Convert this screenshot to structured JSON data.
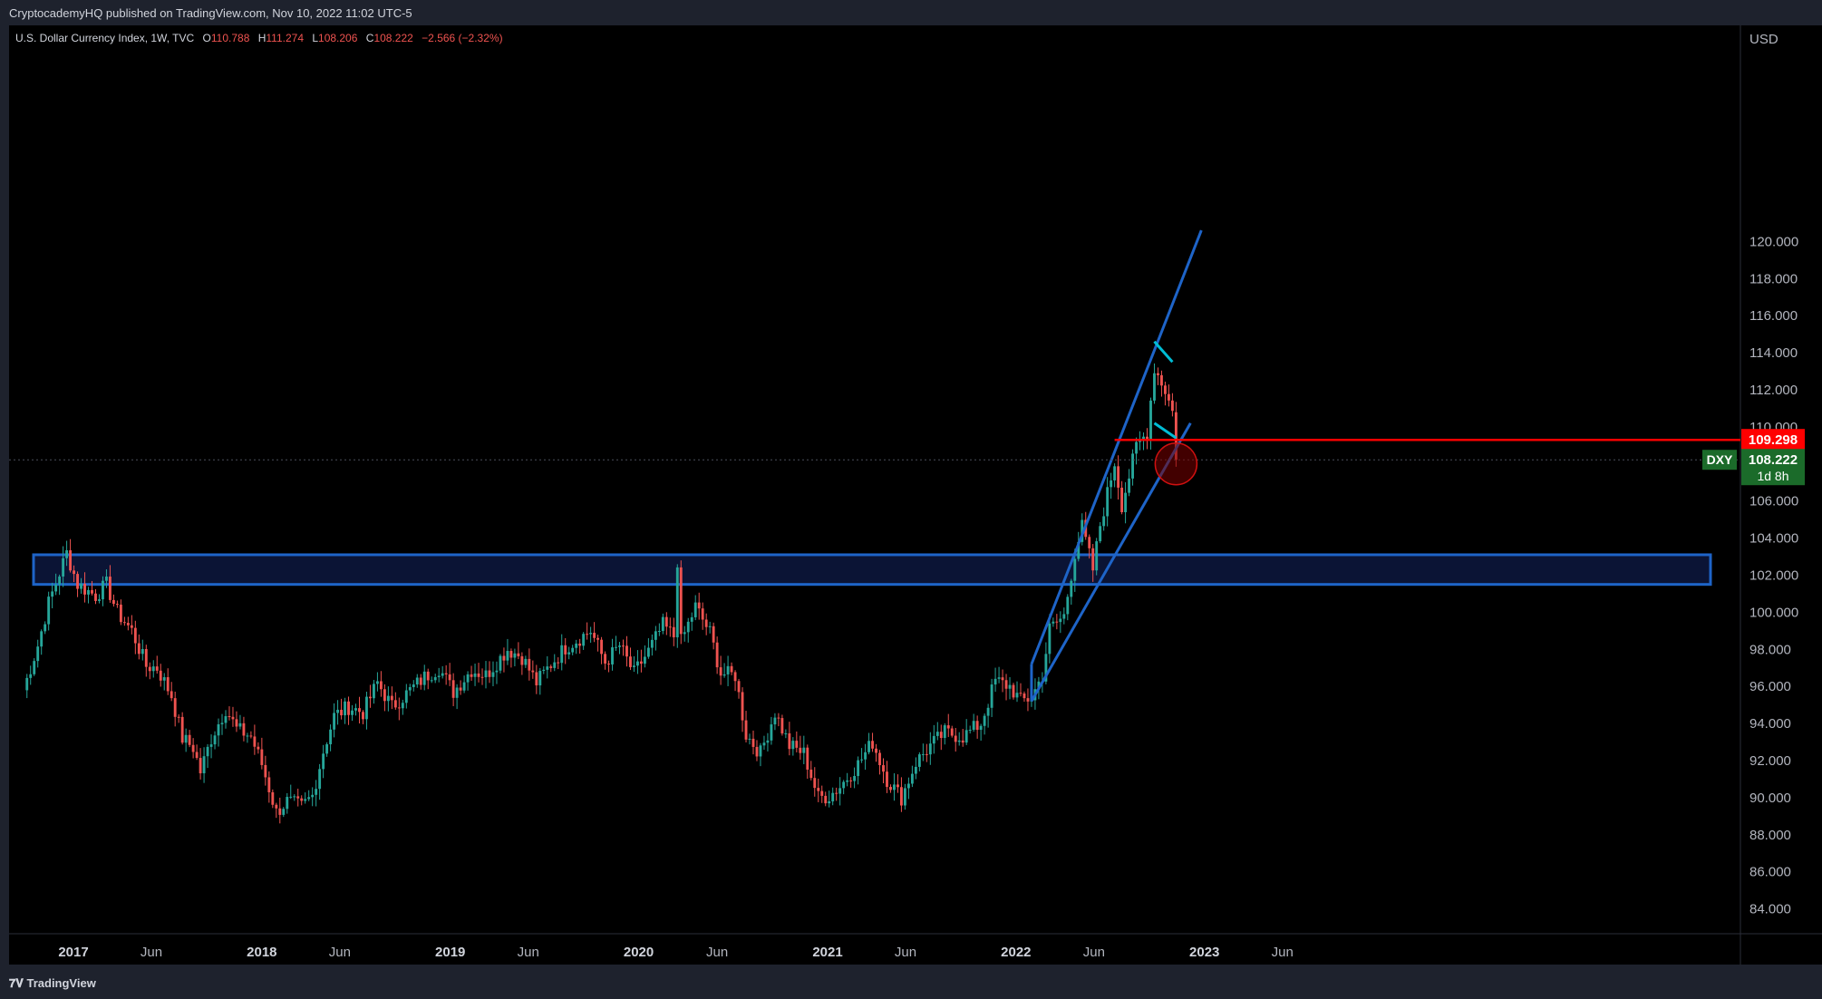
{
  "header": {
    "publisher_text": "CryptocademyHQ published on TradingView.com, Nov 10, 2022 11:02 UTC-5"
  },
  "legend": {
    "symbol_text": "U.S. Dollar Currency Index, 1W, TVC",
    "open_label": "O",
    "open": "110.788",
    "high_label": "H",
    "high": "111.274",
    "low_label": "L",
    "low": "108.206",
    "close_label": "C",
    "close": "108.222",
    "change": "−2.566 (−2.32%)"
  },
  "axis": {
    "currency": "USD"
  },
  "price_tags": {
    "level_value": "109.298",
    "symbol": "DXY",
    "last_value": "108.222",
    "countdown": "1d 8h"
  },
  "footer": {
    "brand": "TradingView"
  },
  "colors": {
    "up": "#26a69a",
    "down": "#ef5350",
    "channel": "#1e64c8",
    "zone_fill": "#0b1435",
    "flag": "#00bcd4",
    "red_line": "#ff0000",
    "last_tag": "#1b6b2a"
  },
  "chart_data": {
    "type": "candlestick",
    "interval": "1W",
    "y_axis": {
      "range": [
        83,
        121
      ],
      "ticks": [
        "84.000",
        "86.000",
        "88.000",
        "90.000",
        "92.000",
        "94.000",
        "96.000",
        "98.000",
        "100.000",
        "102.000",
        "104.000",
        "106.000",
        "108.000",
        "110.000",
        "112.000",
        "114.000",
        "116.000",
        "118.000",
        "120.000"
      ]
    },
    "x_axis": {
      "ticks": [
        {
          "label": "2017",
          "date": "2017-01-01",
          "bold": true
        },
        {
          "label": "Jun",
          "date": "2017-06-01",
          "bold": false
        },
        {
          "label": "2018",
          "date": "2018-01-01",
          "bold": true
        },
        {
          "label": "Jun",
          "date": "2018-06-01",
          "bold": false
        },
        {
          "label": "2019",
          "date": "2019-01-01",
          "bold": true
        },
        {
          "label": "Jun",
          "date": "2019-06-01",
          "bold": false
        },
        {
          "label": "2020",
          "date": "2020-01-01",
          "bold": true
        },
        {
          "label": "Jun",
          "date": "2020-06-01",
          "bold": false
        },
        {
          "label": "2021",
          "date": "2021-01-01",
          "bold": true
        },
        {
          "label": "Jun",
          "date": "2021-06-01",
          "bold": false
        },
        {
          "label": "2022",
          "date": "2022-01-01",
          "bold": true
        },
        {
          "label": "Jun",
          "date": "2022-06-01",
          "bold": false
        },
        {
          "label": "2023",
          "date": "2023-01-01",
          "bold": true
        },
        {
          "label": "Jun",
          "date": "2023-06-01",
          "bold": false
        }
      ]
    },
    "weekly_close_anchors": [
      [
        "2016-09-26",
        95.8
      ],
      [
        "2016-10-24",
        98.2
      ],
      [
        "2016-11-14",
        100.5
      ],
      [
        "2016-12-19",
        103.2
      ],
      [
        "2017-01-09",
        101.5
      ],
      [
        "2017-02-13",
        100.9
      ],
      [
        "2017-03-06",
        101.5
      ],
      [
        "2017-03-27",
        100.0
      ],
      [
        "2017-04-24",
        99.0
      ],
      [
        "2017-05-22",
        97.1
      ],
      [
        "2017-06-12",
        97.0
      ],
      [
        "2017-07-10",
        95.5
      ],
      [
        "2017-07-31",
        93.2
      ],
      [
        "2017-08-21",
        92.7
      ],
      [
        "2017-09-04",
        91.4
      ],
      [
        "2017-09-25",
        93.2
      ],
      [
        "2017-10-23",
        94.8
      ],
      [
        "2017-11-13",
        93.7
      ],
      [
        "2017-12-11",
        93.3
      ],
      [
        "2018-01-01",
        91.8
      ],
      [
        "2018-01-29",
        89.2
      ],
      [
        "2018-02-19",
        89.8
      ],
      [
        "2018-03-19",
        89.5
      ],
      [
        "2018-04-09",
        90.1
      ],
      [
        "2018-04-30",
        92.5
      ],
      [
        "2018-05-21",
        94.4
      ],
      [
        "2018-06-18",
        94.9
      ],
      [
        "2018-07-16",
        94.6
      ],
      [
        "2018-08-13",
        96.2
      ],
      [
        "2018-09-10",
        94.9
      ],
      [
        "2018-10-08",
        95.6
      ],
      [
        "2018-11-12",
        96.5
      ],
      [
        "2018-12-10",
        97.0
      ],
      [
        "2019-01-07",
        95.7
      ],
      [
        "2019-02-11",
        96.9
      ],
      [
        "2019-03-11",
        96.6
      ],
      [
        "2019-04-22",
        98.0
      ],
      [
        "2019-05-20",
        97.6
      ],
      [
        "2019-06-17",
        96.2
      ],
      [
        "2019-07-15",
        97.2
      ],
      [
        "2019-08-12",
        98.1
      ],
      [
        "2019-09-30",
        99.0
      ],
      [
        "2019-10-28",
        97.3
      ],
      [
        "2019-11-25",
        98.2
      ],
      [
        "2019-12-23",
        96.7
      ],
      [
        "2020-01-20",
        97.9
      ],
      [
        "2020-02-17",
        99.3
      ],
      [
        "2020-03-09",
        98.7
      ],
      [
        "2020-03-16",
        102.8
      ],
      [
        "2020-03-23",
        98.4
      ],
      [
        "2020-04-20",
        100.3
      ],
      [
        "2020-05-18",
        98.9
      ],
      [
        "2020-06-08",
        96.7
      ],
      [
        "2020-07-06",
        96.6
      ],
      [
        "2020-07-27",
        93.4
      ],
      [
        "2020-08-24",
        92.4
      ],
      [
        "2020-09-21",
        94.6
      ],
      [
        "2020-10-19",
        92.8
      ],
      [
        "2020-11-16",
        92.4
      ],
      [
        "2020-12-14",
        90.0
      ],
      [
        "2021-01-04",
        90.1
      ],
      [
        "2021-01-25",
        90.6
      ],
      [
        "2021-03-01",
        91.8
      ],
      [
        "2021-03-29",
        93.0
      ],
      [
        "2021-04-26",
        91.0
      ],
      [
        "2021-05-24",
        90.0
      ],
      [
        "2021-06-21",
        91.9
      ],
      [
        "2021-07-19",
        92.8
      ],
      [
        "2021-08-16",
        93.5
      ],
      [
        "2021-09-20",
        93.3
      ],
      [
        "2021-10-25",
        94.0
      ],
      [
        "2021-11-22",
        96.3
      ],
      [
        "2021-12-20",
        96.0
      ],
      [
        "2022-01-10",
        95.2
      ],
      [
        "2022-01-31",
        95.4
      ],
      [
        "2022-02-21",
        96.6
      ],
      [
        "2022-03-07",
        99.1
      ],
      [
        "2022-04-04",
        99.8
      ],
      [
        "2022-04-25",
        103.2
      ],
      [
        "2022-05-09",
        104.6
      ],
      [
        "2022-05-30",
        102.3
      ],
      [
        "2022-06-13",
        104.7
      ],
      [
        "2022-07-11",
        108.1
      ],
      [
        "2022-07-25",
        105.8
      ],
      [
        "2022-08-22",
        108.9
      ],
      [
        "2022-09-12",
        109.7
      ],
      [
        "2022-09-26",
        113.2
      ],
      [
        "2022-10-17",
        112.0
      ],
      [
        "2022-10-31",
        110.8
      ],
      [
        "2022-11-07",
        108.222
      ]
    ]
  }
}
